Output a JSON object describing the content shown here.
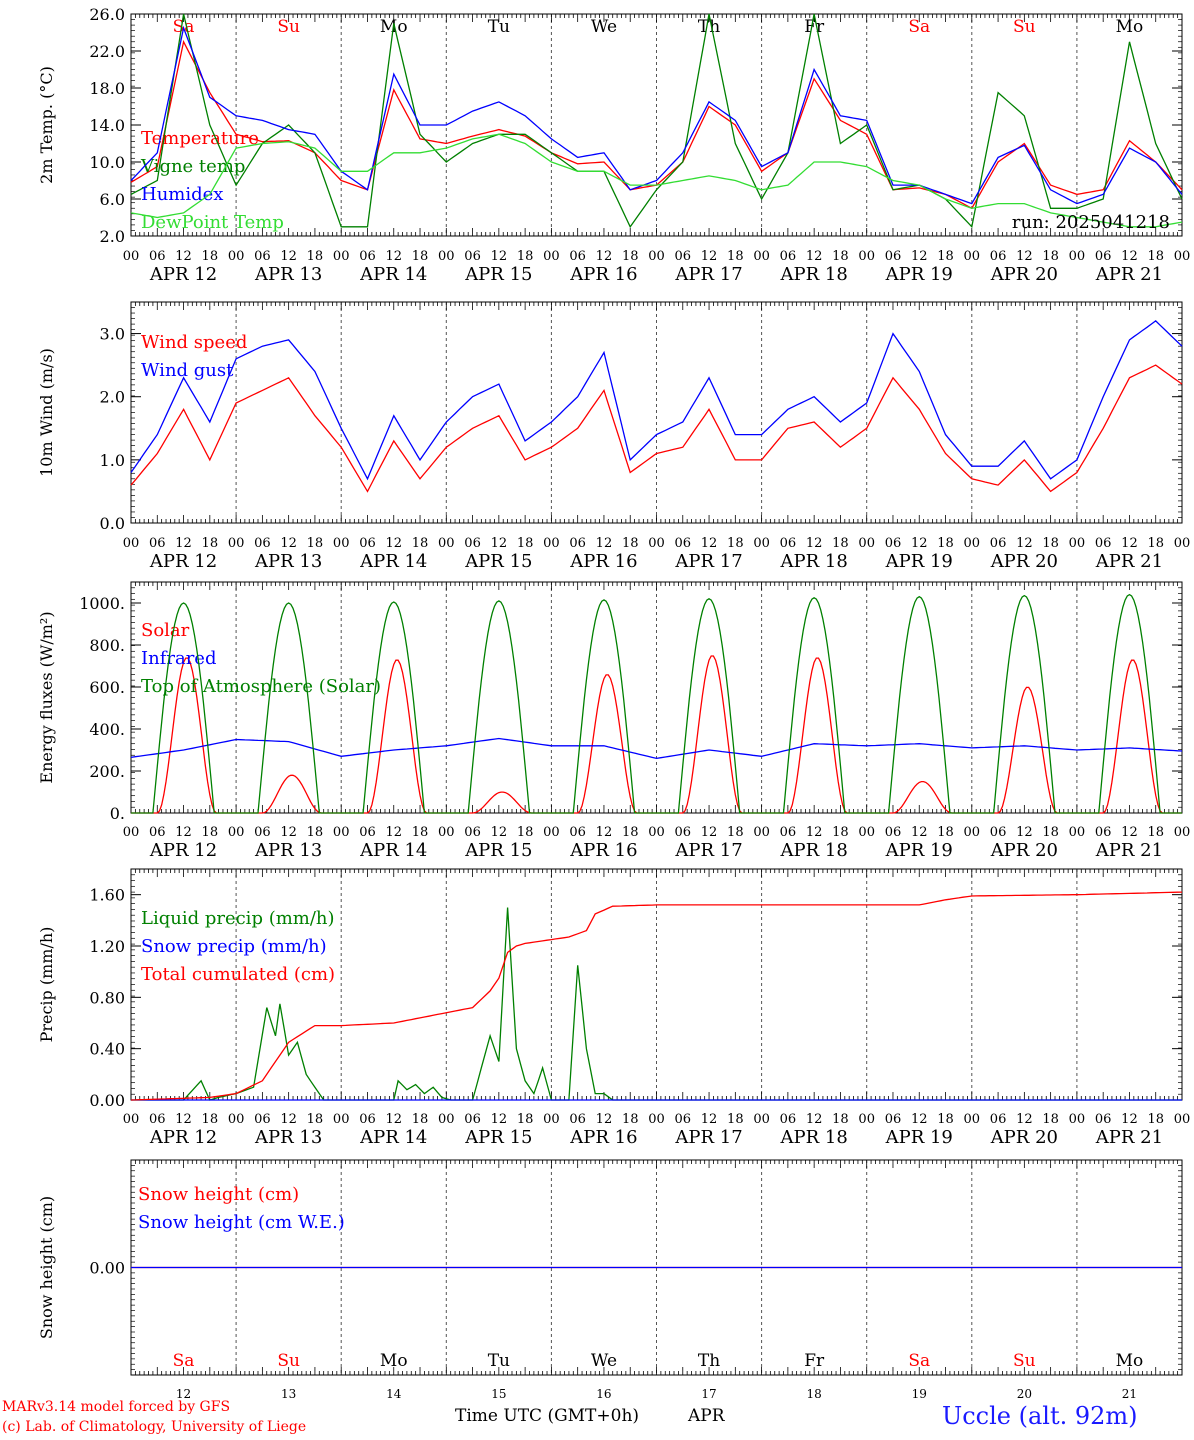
{
  "colors": {
    "red": "#ff0000",
    "green": "#008000",
    "blue": "#0000ff",
    "lightgreen": "#33dd33",
    "axis": "#000000"
  },
  "days": [
    "Sa",
    "Su",
    "Mo",
    "Tu",
    "We",
    "Th",
    "Fr",
    "Sa",
    "Su",
    "Mo"
  ],
  "weekend_days": [
    0,
    1,
    7,
    8
  ],
  "date_labels": [
    "APR 12",
    "APR 13",
    "APR 14",
    "APR 15",
    "APR 16",
    "APR 17",
    "APR 18",
    "APR 19",
    "APR 20",
    "APR 21"
  ],
  "hour_ticks": [
    "00",
    "06",
    "12",
    "18"
  ],
  "day_numbers": [
    "12",
    "13",
    "14",
    "15",
    "16",
    "17",
    "18",
    "19",
    "20",
    "21"
  ],
  "footer": {
    "model": "MARv3.14 model forced by GFS",
    "lab": "(c) Lab. of Climatology, University of Liege",
    "xlabel": "Time UTC (GMT+0h)",
    "month": "APR",
    "station": "Uccle (alt. 92m)"
  },
  "chart_data": [
    {
      "type": "line",
      "id": "temp",
      "ylabel": "2m Temp. (°C)",
      "ylim": [
        2,
        26
      ],
      "yticks": [
        "2.0",
        "6.0",
        "10.0",
        "14.0",
        "18.0",
        "22.0",
        "26.0"
      ],
      "annotation": "run: 2025041218",
      "x_hours": [
        0,
        6,
        12,
        18,
        24,
        30,
        36,
        42,
        48,
        54,
        60,
        66,
        72,
        78,
        84,
        90,
        96,
        102,
        108,
        114,
        120,
        126,
        132,
        138,
        144,
        150,
        156,
        162,
        168,
        174,
        180,
        186,
        192,
        198,
        204,
        210,
        216,
        222,
        228,
        234,
        240
      ],
      "series": [
        {
          "name": "Temperature",
          "color": "red",
          "values": [
            7.8,
            9.5,
            23.0,
            17.5,
            13.0,
            12.2,
            12.3,
            11.0,
            8.0,
            7.0,
            17.8,
            12.5,
            12.0,
            12.8,
            13.5,
            12.8,
            11.0,
            9.8,
            10.0,
            7.0,
            7.5,
            10.0,
            16.0,
            14.0,
            9.0,
            11.0,
            19.0,
            14.5,
            13.0,
            7.0,
            7.2,
            6.5,
            5.0,
            10.0,
            12.0,
            7.5,
            6.5,
            7.0,
            12.3,
            10.0,
            7.0
          ]
        },
        {
          "name": "Vigne temp",
          "color": "green",
          "values": [
            6.5,
            8.0,
            26.0,
            14.0,
            7.5,
            12.0,
            14.0,
            11.0,
            3.0,
            3.0,
            25.0,
            13.0,
            10.0,
            12.0,
            13.0,
            13.0,
            11.0,
            9.0,
            9.0,
            3.0,
            7.0,
            10.0,
            26.0,
            12.0,
            6.0,
            11.0,
            26.0,
            12.0,
            14.0,
            7.0,
            7.5,
            6.0,
            3.0,
            17.5,
            15.0,
            5.0,
            5.0,
            6.0,
            23.0,
            12.0,
            6.0
          ]
        },
        {
          "name": "Humidex",
          "color": "blue",
          "values": [
            8.0,
            11.0,
            24.5,
            17.0,
            15.0,
            14.5,
            13.5,
            13.0,
            9.0,
            7.0,
            19.5,
            14.0,
            14.0,
            15.5,
            16.5,
            15.0,
            12.5,
            10.5,
            11.0,
            7.0,
            8.0,
            11.0,
            16.5,
            14.5,
            9.5,
            11.0,
            20.0,
            15.0,
            14.5,
            7.5,
            7.5,
            6.5,
            5.5,
            10.5,
            11.8,
            7.0,
            5.5,
            6.5,
            11.5,
            10.0,
            6.5
          ]
        },
        {
          "name": "DewPoint Temp",
          "color": "lightgreen",
          "values": [
            4.5,
            4.0,
            4.5,
            6.5,
            11.5,
            12.0,
            12.2,
            11.5,
            9.0,
            9.0,
            11.0,
            11.0,
            11.5,
            12.5,
            13.0,
            12.0,
            10.0,
            9.0,
            9.0,
            7.5,
            7.5,
            8.0,
            8.5,
            8.0,
            7.0,
            7.5,
            10.0,
            10.0,
            9.5,
            8.0,
            7.5,
            6.0,
            5.0,
            5.5,
            5.5,
            4.5,
            4.0,
            3.5,
            3.0,
            3.0,
            3.5
          ]
        }
      ]
    },
    {
      "type": "line",
      "id": "wind",
      "ylabel": "10m Wind (m/s)",
      "ylim": [
        0,
        3.5
      ],
      "yticks": [
        "0.0",
        "1.0",
        "2.0",
        "3.0"
      ],
      "x_hours": [
        0,
        6,
        12,
        18,
        24,
        30,
        36,
        42,
        48,
        54,
        60,
        66,
        72,
        78,
        84,
        90,
        96,
        102,
        108,
        114,
        120,
        126,
        132,
        138,
        144,
        150,
        156,
        162,
        168,
        174,
        180,
        186,
        192,
        198,
        204,
        210,
        216,
        222,
        228,
        234,
        240
      ],
      "series": [
        {
          "name": "Wind speed",
          "color": "red",
          "values": [
            0.6,
            1.1,
            1.8,
            1.0,
            1.9,
            2.1,
            2.3,
            1.7,
            1.2,
            0.5,
            1.3,
            0.7,
            1.2,
            1.5,
            1.7,
            1.0,
            1.2,
            1.5,
            2.1,
            0.8,
            1.1,
            1.2,
            1.8,
            1.0,
            1.0,
            1.5,
            1.6,
            1.2,
            1.5,
            2.3,
            1.8,
            1.1,
            0.7,
            0.6,
            1.0,
            0.5,
            0.8,
            1.5,
            2.3,
            2.5,
            2.2
          ]
        },
        {
          "name": "Wind gust",
          "color": "blue",
          "values": [
            0.8,
            1.4,
            2.3,
            1.6,
            2.6,
            2.8,
            2.9,
            2.4,
            1.5,
            0.7,
            1.7,
            1.0,
            1.6,
            2.0,
            2.2,
            1.3,
            1.6,
            2.0,
            2.7,
            1.0,
            1.4,
            1.6,
            2.3,
            1.4,
            1.4,
            1.8,
            2.0,
            1.6,
            1.9,
            3.0,
            2.4,
            1.4,
            0.9,
            0.9,
            1.3,
            0.7,
            1.0,
            2.0,
            2.9,
            3.2,
            2.8
          ]
        }
      ]
    },
    {
      "type": "line",
      "id": "energy",
      "ylabel": "Energy fluxes (W/m²)",
      "ylim": [
        0,
        1100
      ],
      "yticks": [
        "0.",
        "200.",
        "400.",
        "600.",
        "800.",
        "1000."
      ],
      "series": [
        {
          "name": "Solar",
          "color": "red",
          "peak_hour": 13,
          "daily_peaks": [
            740,
            180,
            730,
            100,
            660,
            750,
            740,
            150,
            600,
            730
          ]
        },
        {
          "name": "Infrared",
          "color": "blue",
          "x_hours": [
            0,
            12,
            24,
            36,
            48,
            60,
            72,
            84,
            96,
            108,
            120,
            132,
            144,
            156,
            168,
            180,
            192,
            204,
            216,
            228,
            240
          ],
          "values": [
            265,
            300,
            350,
            340,
            270,
            300,
            320,
            355,
            320,
            320,
            260,
            300,
            270,
            330,
            320,
            330,
            310,
            320,
            300,
            310,
            295
          ]
        },
        {
          "name": "Top of Atmosphere (Solar)",
          "color": "green",
          "peak_hour": 12,
          "daily_peaks": [
            1000,
            1000,
            1005,
            1010,
            1015,
            1020,
            1025,
            1030,
            1035,
            1040
          ],
          "sunrise_offset_h": 5,
          "sunset_offset_h": 19
        }
      ]
    },
    {
      "type": "line",
      "id": "precip",
      "ylabel": "Precip (mm/h)",
      "ylim": [
        0,
        1.8
      ],
      "yticks": [
        "0.00",
        "0.40",
        "0.80",
        "1.20",
        "1.60"
      ],
      "series": [
        {
          "name": "Liquid precip (mm/h)",
          "color": "green",
          "x_hours": [
            0,
            12,
            16,
            18,
            20,
            24,
            28,
            31,
            33,
            34,
            36,
            38,
            40,
            44,
            48,
            60,
            61,
            63,
            65,
            67,
            69,
            71,
            73,
            78,
            82,
            84,
            86,
            88,
            90,
            92,
            94,
            96,
            100,
            102,
            104,
            106,
            108,
            110,
            112,
            120,
            200,
            240
          ],
          "values": [
            0,
            0,
            0.15,
            0,
            0.02,
            0.05,
            0.1,
            0.72,
            0.5,
            0.75,
            0.35,
            0.45,
            0.2,
            0,
            0,
            0,
            0.15,
            0.08,
            0.12,
            0.05,
            0.1,
            0.02,
            0,
            0,
            0.5,
            0.3,
            1.5,
            0.4,
            0.15,
            0.05,
            0.25,
            0,
            0,
            1.05,
            0.4,
            0.05,
            0.05,
            0,
            0,
            0,
            0,
            0
          ]
        },
        {
          "name": "Snow precip (mm/h)",
          "color": "blue",
          "x_hours": [
            0,
            240
          ],
          "values": [
            0,
            0
          ]
        },
        {
          "name": "Total cumulated (cm)",
          "color": "red",
          "x_hours": [
            0,
            18,
            24,
            30,
            36,
            42,
            48,
            60,
            72,
            78,
            82,
            84,
            86,
            88,
            90,
            96,
            100,
            104,
            106,
            110,
            120,
            144,
            180,
            186,
            192,
            216,
            240
          ],
          "values": [
            0,
            0.02,
            0.05,
            0.15,
            0.45,
            0.58,
            0.58,
            0.6,
            0.68,
            0.72,
            0.85,
            0.95,
            1.15,
            1.2,
            1.22,
            1.25,
            1.27,
            1.32,
            1.45,
            1.51,
            1.52,
            1.52,
            1.52,
            1.56,
            1.59,
            1.6,
            1.62
          ]
        }
      ]
    },
    {
      "type": "line",
      "id": "snow",
      "ylabel": "Snow height (cm)",
      "ylim": [
        -1,
        1
      ],
      "yticks": [
        "0.00"
      ],
      "series": [
        {
          "name": "Snow height (cm)",
          "color": "red",
          "x_hours": [
            0,
            240
          ],
          "values": [
            0,
            0
          ]
        },
        {
          "name": "Snow height (cm W.E.)",
          "color": "blue",
          "x_hours": [
            0,
            240
          ],
          "values": [
            0,
            0
          ]
        }
      ]
    }
  ]
}
